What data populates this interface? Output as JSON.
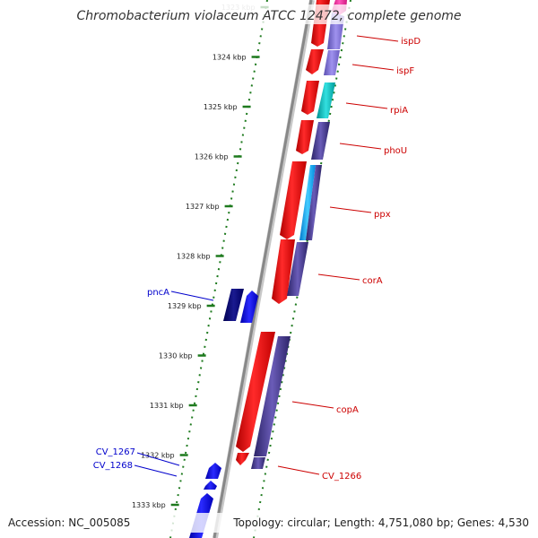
{
  "title": "Chromobacterium violaceum ATCC 12472, complete genome",
  "footer": {
    "accession": "Accession: NC_005085",
    "summary": "Topology: circular; Length: 4,751,080 bp; Genes: 4,530"
  },
  "colors": {
    "backbone": "#888888",
    "tick": "#1e7a1e",
    "forward_gene": "#ff0000",
    "reverse_gene": "#4b3f96",
    "plus_gene": "#0000ff",
    "plus_gene_dark": "#000080",
    "cyan_gene": "#00c0c0",
    "light_blue_gene": "#00aaff",
    "magenta_gene": "#ff33aa",
    "forward_label": "#cc0000",
    "plus_label": "#0000cc"
  },
  "kbp_labels": [
    {
      "pos": 1323,
      "text": "1323 kbp"
    },
    {
      "pos": 1324,
      "text": "1324 kbp"
    },
    {
      "pos": 1325,
      "text": "1325 kbp"
    },
    {
      "pos": 1326,
      "text": "1326 kbp"
    },
    {
      "pos": 1327,
      "text": "1327 kbp"
    },
    {
      "pos": 1328,
      "text": "1328 kbp"
    },
    {
      "pos": 1329,
      "text": "1329 kbp"
    },
    {
      "pos": 1330,
      "text": "1330 kbp"
    },
    {
      "pos": 1331,
      "text": "1331 kbp"
    },
    {
      "pos": 1332,
      "text": "1332 kbp"
    },
    {
      "pos": 1333,
      "text": "1333 kbp"
    }
  ],
  "genes_right": [
    {
      "name": "ispD"
    },
    {
      "name": "ispF"
    },
    {
      "name": "rpiA"
    },
    {
      "name": "phoU"
    },
    {
      "name": "ppx"
    },
    {
      "name": "corA"
    },
    {
      "name": "copA"
    },
    {
      "name": "CV_1266"
    }
  ],
  "genes_left": [
    {
      "name": "pncA"
    },
    {
      "name": "CV_1267"
    },
    {
      "name": "CV_1268"
    }
  ]
}
